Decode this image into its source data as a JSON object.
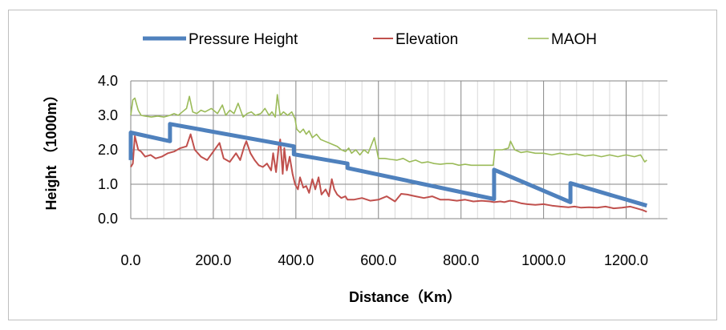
{
  "chart_data": {
    "type": "line",
    "xlabel": "Distance（Km）",
    "ylabel": "Height （1000m）",
    "xlim": [
      0,
      1300
    ],
    "ylim": [
      0,
      4
    ],
    "x_ticks": [
      "0.0",
      "200.0",
      "400.0",
      "600.0",
      "800.0",
      "1000.0",
      "1200.0"
    ],
    "y_ticks": [
      "0.0",
      "1.0",
      "2.0",
      "3.0",
      "4.0"
    ],
    "grid": "major gridlines every 200 km and 1.0; minor vertical gridlines every 40 km",
    "legend": "top",
    "series": [
      {
        "name": "Pressure Height",
        "color": "#4f81bd",
        "points": [
          [
            0,
            1.7
          ],
          [
            0,
            2.5
          ],
          [
            95,
            2.25
          ],
          [
            95,
            2.75
          ],
          [
            395,
            2.1
          ],
          [
            395,
            1.87
          ],
          [
            525,
            1.6
          ],
          [
            525,
            1.47
          ],
          [
            880,
            0.57
          ],
          [
            880,
            1.42
          ],
          [
            1065,
            0.48
          ],
          [
            1065,
            1.03
          ],
          [
            1250,
            0.38
          ]
        ]
      },
      {
        "name": "Elevation",
        "color": "#c0504d",
        "points": [
          [
            0,
            1.5
          ],
          [
            5,
            1.6
          ],
          [
            10,
            2.4
          ],
          [
            18,
            2.0
          ],
          [
            25,
            1.95
          ],
          [
            35,
            1.8
          ],
          [
            48,
            1.85
          ],
          [
            60,
            1.75
          ],
          [
            75,
            1.8
          ],
          [
            90,
            1.9
          ],
          [
            105,
            1.95
          ],
          [
            120,
            2.05
          ],
          [
            135,
            2.1
          ],
          [
            145,
            2.45
          ],
          [
            155,
            2.0
          ],
          [
            170,
            1.8
          ],
          [
            185,
            1.7
          ],
          [
            200,
            1.95
          ],
          [
            215,
            2.2
          ],
          [
            225,
            1.75
          ],
          [
            240,
            1.65
          ],
          [
            255,
            1.9
          ],
          [
            265,
            1.7
          ],
          [
            275,
            2.1
          ],
          [
            280,
            2.25
          ],
          [
            290,
            1.9
          ],
          [
            300,
            1.7
          ],
          [
            310,
            1.55
          ],
          [
            320,
            1.5
          ],
          [
            330,
            1.6
          ],
          [
            340,
            1.4
          ],
          [
            345,
            1.9
          ],
          [
            352,
            1.35
          ],
          [
            358,
            2.05
          ],
          [
            362,
            2.3
          ],
          [
            368,
            1.3
          ],
          [
            372,
            2.05
          ],
          [
            378,
            1.4
          ],
          [
            385,
            1.8
          ],
          [
            392,
            1.3
          ],
          [
            398,
            1.0
          ],
          [
            405,
            0.85
          ],
          [
            410,
            1.2
          ],
          [
            418,
            0.9
          ],
          [
            425,
            0.95
          ],
          [
            432,
            0.75
          ],
          [
            440,
            1.15
          ],
          [
            447,
            0.85
          ],
          [
            455,
            1.2
          ],
          [
            462,
            0.7
          ],
          [
            472,
            0.85
          ],
          [
            480,
            0.65
          ],
          [
            487,
            1.15
          ],
          [
            493,
            0.85
          ],
          [
            500,
            0.7
          ],
          [
            510,
            0.6
          ],
          [
            520,
            0.65
          ],
          [
            525,
            0.55
          ],
          [
            540,
            0.55
          ],
          [
            560,
            0.6
          ],
          [
            580,
            0.52
          ],
          [
            600,
            0.55
          ],
          [
            620,
            0.65
          ],
          [
            640,
            0.5
          ],
          [
            655,
            0.72
          ],
          [
            670,
            0.7
          ],
          [
            690,
            0.65
          ],
          [
            710,
            0.6
          ],
          [
            730,
            0.65
          ],
          [
            750,
            0.55
          ],
          [
            770,
            0.55
          ],
          [
            790,
            0.52
          ],
          [
            810,
            0.55
          ],
          [
            830,
            0.5
          ],
          [
            850,
            0.52
          ],
          [
            870,
            0.5
          ],
          [
            880,
            0.48
          ],
          [
            895,
            0.5
          ],
          [
            905,
            0.48
          ],
          [
            918,
            0.52
          ],
          [
            930,
            0.5
          ],
          [
            945,
            0.45
          ],
          [
            960,
            0.42
          ],
          [
            980,
            0.4
          ],
          [
            1000,
            0.42
          ],
          [
            1020,
            0.38
          ],
          [
            1040,
            0.35
          ],
          [
            1060,
            0.33
          ],
          [
            1075,
            0.35
          ],
          [
            1090,
            0.32
          ],
          [
            1110,
            0.33
          ],
          [
            1130,
            0.32
          ],
          [
            1150,
            0.35
          ],
          [
            1170,
            0.3
          ],
          [
            1190,
            0.32
          ],
          [
            1210,
            0.35
          ],
          [
            1225,
            0.3
          ],
          [
            1240,
            0.25
          ],
          [
            1250,
            0.2
          ]
        ]
      },
      {
        "name": "MAOH",
        "color": "#9bbb59",
        "points": [
          [
            0,
            3.0
          ],
          [
            5,
            3.45
          ],
          [
            10,
            3.5
          ],
          [
            18,
            3.15
          ],
          [
            25,
            3.0
          ],
          [
            35,
            2.98
          ],
          [
            50,
            2.95
          ],
          [
            65,
            2.98
          ],
          [
            80,
            2.95
          ],
          [
            95,
            3.0
          ],
          [
            105,
            3.05
          ],
          [
            115,
            3.0
          ],
          [
            125,
            3.1
          ],
          [
            135,
            3.2
          ],
          [
            142,
            3.55
          ],
          [
            150,
            3.1
          ],
          [
            160,
            3.05
          ],
          [
            170,
            3.15
          ],
          [
            180,
            3.1
          ],
          [
            195,
            3.2
          ],
          [
            210,
            3.05
          ],
          [
            222,
            3.3
          ],
          [
            230,
            3.0
          ],
          [
            240,
            3.15
          ],
          [
            250,
            3.05
          ],
          [
            260,
            3.35
          ],
          [
            272,
            2.95
          ],
          [
            282,
            3.05
          ],
          [
            292,
            3.1
          ],
          [
            302,
            3.0
          ],
          [
            315,
            3.05
          ],
          [
            325,
            3.2
          ],
          [
            335,
            3.0
          ],
          [
            342,
            3.1
          ],
          [
            350,
            2.95
          ],
          [
            355,
            3.6
          ],
          [
            362,
            3.0
          ],
          [
            370,
            3.1
          ],
          [
            380,
            3.0
          ],
          [
            390,
            3.1
          ],
          [
            398,
            2.9
          ],
          [
            402,
            2.6
          ],
          [
            410,
            2.5
          ],
          [
            418,
            2.6
          ],
          [
            425,
            2.45
          ],
          [
            432,
            2.55
          ],
          [
            440,
            2.35
          ],
          [
            450,
            2.45
          ],
          [
            460,
            2.3
          ],
          [
            470,
            2.25
          ],
          [
            480,
            2.2
          ],
          [
            490,
            2.15
          ],
          [
            500,
            2.1
          ],
          [
            510,
            2.0
          ],
          [
            520,
            1.95
          ],
          [
            528,
            2.05
          ],
          [
            535,
            1.9
          ],
          [
            545,
            2.0
          ],
          [
            555,
            1.85
          ],
          [
            565,
            2.0
          ],
          [
            575,
            1.9
          ],
          [
            590,
            2.35
          ],
          [
            600,
            1.75
          ],
          [
            615,
            1.75
          ],
          [
            630,
            1.72
          ],
          [
            645,
            1.7
          ],
          [
            660,
            1.75
          ],
          [
            675,
            1.65
          ],
          [
            690,
            1.7
          ],
          [
            705,
            1.62
          ],
          [
            720,
            1.65
          ],
          [
            735,
            1.6
          ],
          [
            750,
            1.58
          ],
          [
            765,
            1.6
          ],
          [
            780,
            1.6
          ],
          [
            795,
            1.55
          ],
          [
            810,
            1.58
          ],
          [
            825,
            1.55
          ],
          [
            840,
            1.55
          ],
          [
            860,
            1.55
          ],
          [
            878,
            1.55
          ],
          [
            882,
            2.0
          ],
          [
            900,
            2.0
          ],
          [
            915,
            2.05
          ],
          [
            920,
            2.25
          ],
          [
            930,
            2.0
          ],
          [
            945,
            1.92
          ],
          [
            960,
            1.95
          ],
          [
            980,
            1.9
          ],
          [
            1000,
            1.9
          ],
          [
            1020,
            1.85
          ],
          [
            1040,
            1.9
          ],
          [
            1060,
            1.85
          ],
          [
            1080,
            1.88
          ],
          [
            1100,
            1.82
          ],
          [
            1120,
            1.85
          ],
          [
            1140,
            1.8
          ],
          [
            1160,
            1.85
          ],
          [
            1180,
            1.8
          ],
          [
            1200,
            1.85
          ],
          [
            1220,
            1.8
          ],
          [
            1235,
            1.85
          ],
          [
            1245,
            1.65
          ],
          [
            1250,
            1.7
          ]
        ]
      }
    ]
  }
}
